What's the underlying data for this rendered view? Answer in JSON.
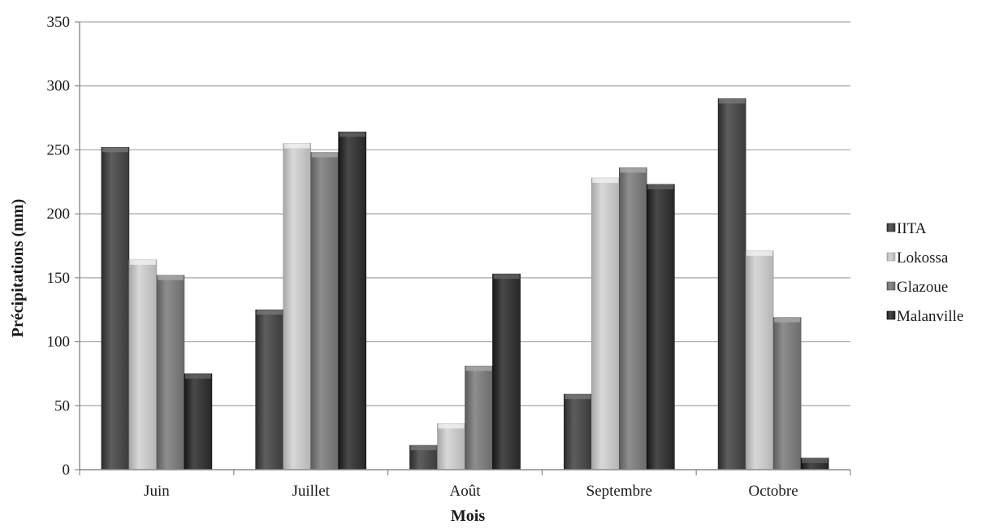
{
  "chart_data": {
    "type": "bar",
    "title": "",
    "xlabel": "Mois",
    "ylabel": "Précipitations (mm)",
    "ylim": [
      0,
      350
    ],
    "yticks": [
      0,
      50,
      100,
      150,
      200,
      250,
      300,
      350
    ],
    "grid": true,
    "legend_position": "right",
    "categories": [
      "Juin",
      "Juillet",
      "Août",
      "Septembre",
      "Octobre"
    ],
    "series": [
      {
        "name": "IITA",
        "color": "#4a4a4a",
        "values": [
          252,
          125,
          19,
          59,
          290
        ]
      },
      {
        "name": "Lokossa",
        "color": "#c4c4c4",
        "values": [
          164,
          255,
          36,
          228,
          171
        ]
      },
      {
        "name": "Glazoue",
        "color": "#7a7a7a",
        "values": [
          152,
          248,
          81,
          236,
          119
        ]
      },
      {
        "name": "Malanville",
        "color": "#353535",
        "values": [
          75,
          264,
          153,
          223,
          9
        ]
      }
    ]
  }
}
